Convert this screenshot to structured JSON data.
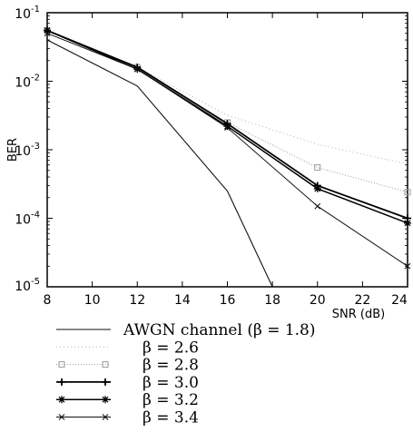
{
  "chart_data": {
    "type": "line",
    "xlabel": "SNR (dB)",
    "ylabel": "BER",
    "x_ticks": [
      "8",
      "10",
      "12",
      "14",
      "16",
      "18",
      "20",
      "22",
      "24"
    ],
    "xlim": [
      8,
      24
    ],
    "ylim": [
      1e-05,
      0.1
    ],
    "y_scale": "log",
    "y_ticks": [
      {
        "value": 0.1,
        "base": "10",
        "exp": "-1"
      },
      {
        "value": 0.01,
        "base": "10",
        "exp": "-2"
      },
      {
        "value": 0.001,
        "base": "10",
        "exp": "-3"
      },
      {
        "value": 0.0001,
        "base": "10",
        "exp": "-4"
      },
      {
        "value": 1e-05,
        "base": "10",
        "exp": "-5"
      }
    ],
    "grid": false,
    "legend_position": "below",
    "series": [
      {
        "name": "AWGN channel (β = 1.8)",
        "style": "solid-thin",
        "color": "#111111",
        "x": [
          8,
          12,
          16,
          18
        ],
        "y": [
          0.04,
          0.0085,
          0.00025,
          1e-05
        ]
      },
      {
        "name": "β = 2.6",
        "style": "dotted",
        "color": "#b0b0b0",
        "x": [
          8,
          12,
          16,
          20,
          24
        ],
        "y": [
          0.055,
          0.016,
          0.0032,
          0.0012,
          0.00062
        ]
      },
      {
        "name": "β = 2.8",
        "style": "dotted-square",
        "color": "#9a9a9a",
        "x": [
          8,
          12,
          16,
          20,
          24
        ],
        "y": [
          0.055,
          0.016,
          0.0025,
          0.00055,
          0.00024
        ]
      },
      {
        "name": "β = 3.0",
        "style": "solid-plus",
        "color": "#000000",
        "x": [
          8,
          12,
          16,
          20,
          24
        ],
        "y": [
          0.055,
          0.016,
          0.0024,
          0.0003,
          0.0001
        ]
      },
      {
        "name": "β = 3.2",
        "style": "solid-star",
        "color": "#000000",
        "x": [
          8,
          12,
          16,
          20,
          24
        ],
        "y": [
          0.055,
          0.015,
          0.0022,
          0.00027,
          8.5e-05
        ]
      },
      {
        "name": "β = 3.4",
        "style": "thin-cross",
        "color": "#111111",
        "x": [
          8,
          12,
          16,
          20,
          24
        ],
        "y": [
          0.05,
          0.015,
          0.0021,
          0.00015,
          2e-05
        ]
      }
    ]
  }
}
